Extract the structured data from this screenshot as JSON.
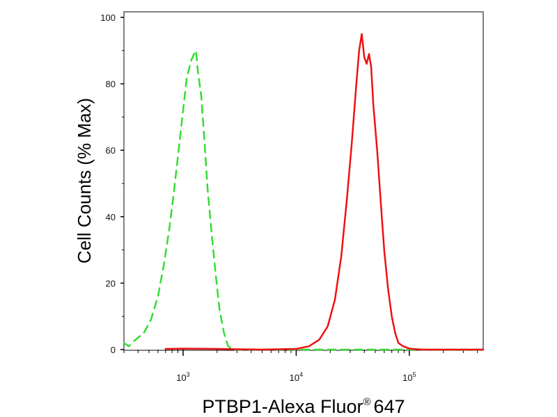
{
  "chart_data": {
    "type": "line",
    "xlabel": "PTBP1-Alexa Fluor",
    "xlabel_superscript": "®",
    "xlabel_suffix": "647",
    "ylabel": "Cell Counts (% Max)",
    "x_scale": "log",
    "xlim": [
      300,
      450000
    ],
    "ylim": [
      0,
      100
    ],
    "x_ticks": [
      {
        "value": 1000,
        "base": "10",
        "exp": "3"
      },
      {
        "value": 10000,
        "base": "10",
        "exp": "4"
      },
      {
        "value": 100000,
        "base": "10",
        "exp": "5"
      }
    ],
    "y_ticks": [
      0,
      20,
      40,
      60,
      80,
      100
    ],
    "grid": false,
    "legend": "none",
    "series": [
      {
        "color": "#33dd33",
        "style": "dashed",
        "x": [
          300,
          330,
          380,
          450,
          520,
          600,
          680,
          760,
          840,
          920,
          1000,
          1080,
          1180,
          1250,
          1300,
          1350,
          1450,
          1550,
          1650,
          1800,
          1950,
          2100,
          2300,
          2500,
          2800,
          3500,
          5000,
          10000,
          30000,
          60000,
          100000,
          200000,
          450000
        ],
        "y": [
          2,
          1,
          3,
          5,
          9,
          16,
          26,
          37,
          49,
          61,
          72,
          82,
          87,
          89,
          90,
          84,
          76,
          62,
          48,
          34,
          22,
          12,
          5,
          1,
          0,
          0,
          0,
          0,
          0,
          0,
          0,
          0,
          0
        ]
      },
      {
        "color": "#ee1111",
        "style": "solid",
        "x": [
          700,
          1000,
          2000,
          3000,
          5000,
          10000,
          13000,
          16000,
          19000,
          22000,
          25000,
          28000,
          31000,
          34000,
          36000,
          38000,
          40000,
          42000,
          44000,
          46000,
          48000,
          52000,
          56000,
          60000,
          65000,
          70000,
          75000,
          80000,
          88000,
          100000,
          130000,
          200000,
          450000
        ],
        "y": [
          0.2,
          0.3,
          0.2,
          0.1,
          0,
          0.2,
          1,
          3,
          7,
          15,
          28,
          45,
          62,
          80,
          90,
          95,
          88,
          86,
          89,
          85,
          74,
          60,
          44,
          30,
          18,
          10,
          5,
          2,
          1,
          0.3,
          0,
          0,
          0
        ]
      }
    ]
  }
}
